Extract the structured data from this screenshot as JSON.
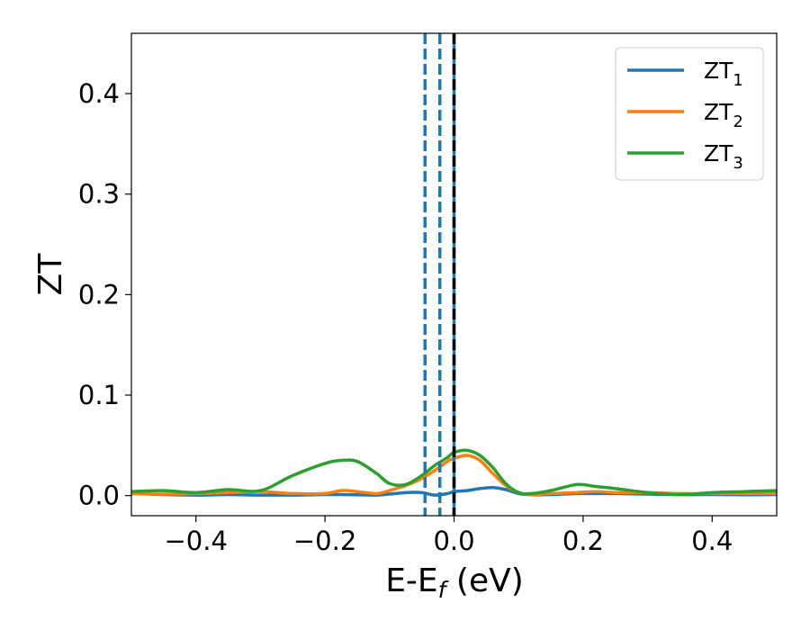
{
  "chart_data": {
    "type": "line",
    "xlabel": "E-E",
    "xlabel_sub": "f",
    "xlabel_unit": " (eV)",
    "ylabel": "ZT",
    "xlim": [
      -0.5,
      0.5
    ],
    "ylim": [
      -0.02,
      0.46
    ],
    "xticks": [
      -0.4,
      -0.2,
      0.0,
      0.2,
      0.4
    ],
    "xtick_labels": [
      "−0.4",
      "−0.2",
      "0.0",
      "0.2",
      "0.4"
    ],
    "yticks": [
      0.0,
      0.1,
      0.2,
      0.3,
      0.4
    ],
    "ytick_labels": [
      "0.0",
      "0.1",
      "0.2",
      "0.3",
      "0.4"
    ],
    "grid": false,
    "legend_position": "top-right",
    "vlines": [
      {
        "x": -0.045,
        "style": "dashed",
        "color": "#1f77b4"
      },
      {
        "x": -0.022,
        "style": "dashed",
        "color": "#1f77b4"
      },
      {
        "x": 0.0,
        "style": "solid",
        "color": "#1f77b4"
      },
      {
        "x": 0.0,
        "style": "dashed",
        "color": "#000000"
      }
    ],
    "x": [
      -0.5,
      -0.45,
      -0.4,
      -0.35,
      -0.3,
      -0.25,
      -0.2,
      -0.175,
      -0.15,
      -0.12,
      -0.1,
      -0.075,
      -0.05,
      -0.03,
      -0.01,
      0.0,
      0.02,
      0.04,
      0.06,
      0.08,
      0.1,
      0.12,
      0.15,
      0.19,
      0.22,
      0.25,
      0.3,
      0.35,
      0.4,
      0.45,
      0.5
    ],
    "series": [
      {
        "name_base": "ZT",
        "name_sub": "1",
        "color": "#1f77b4",
        "values": [
          0.002,
          0.001,
          0.0005,
          0.001,
          0.0005,
          0.0005,
          0.001,
          0.001,
          0.0008,
          0.0005,
          0.0015,
          0.003,
          0.003,
          0.0005,
          0.002,
          0.004,
          0.005,
          0.007,
          0.008,
          0.006,
          0.002,
          0.0008,
          0.001,
          0.002,
          0.002,
          0.002,
          0.0015,
          0.001,
          0.001,
          0.0008,
          0.001
        ]
      },
      {
        "name_base": "ZT",
        "name_sub": "2",
        "color": "#ff7f0e",
        "values": [
          0.002,
          0.0015,
          0.002,
          0.003,
          0.004,
          0.002,
          0.002,
          0.005,
          0.004,
          0.002,
          0.005,
          0.01,
          0.017,
          0.025,
          0.034,
          0.037,
          0.04,
          0.035,
          0.022,
          0.01,
          0.003,
          0.001,
          0.002,
          0.003,
          0.004,
          0.003,
          0.003,
          0.002,
          0.002,
          0.002,
          0.002
        ]
      },
      {
        "name_base": "ZT",
        "name_sub": "3",
        "color": "#2ca02c",
        "values": [
          0.004,
          0.005,
          0.003,
          0.006,
          0.005,
          0.02,
          0.032,
          0.035,
          0.034,
          0.022,
          0.012,
          0.011,
          0.02,
          0.03,
          0.038,
          0.043,
          0.045,
          0.04,
          0.028,
          0.012,
          0.003,
          0.002,
          0.005,
          0.011,
          0.009,
          0.007,
          0.003,
          0.001,
          0.003,
          0.004,
          0.005
        ]
      }
    ]
  }
}
